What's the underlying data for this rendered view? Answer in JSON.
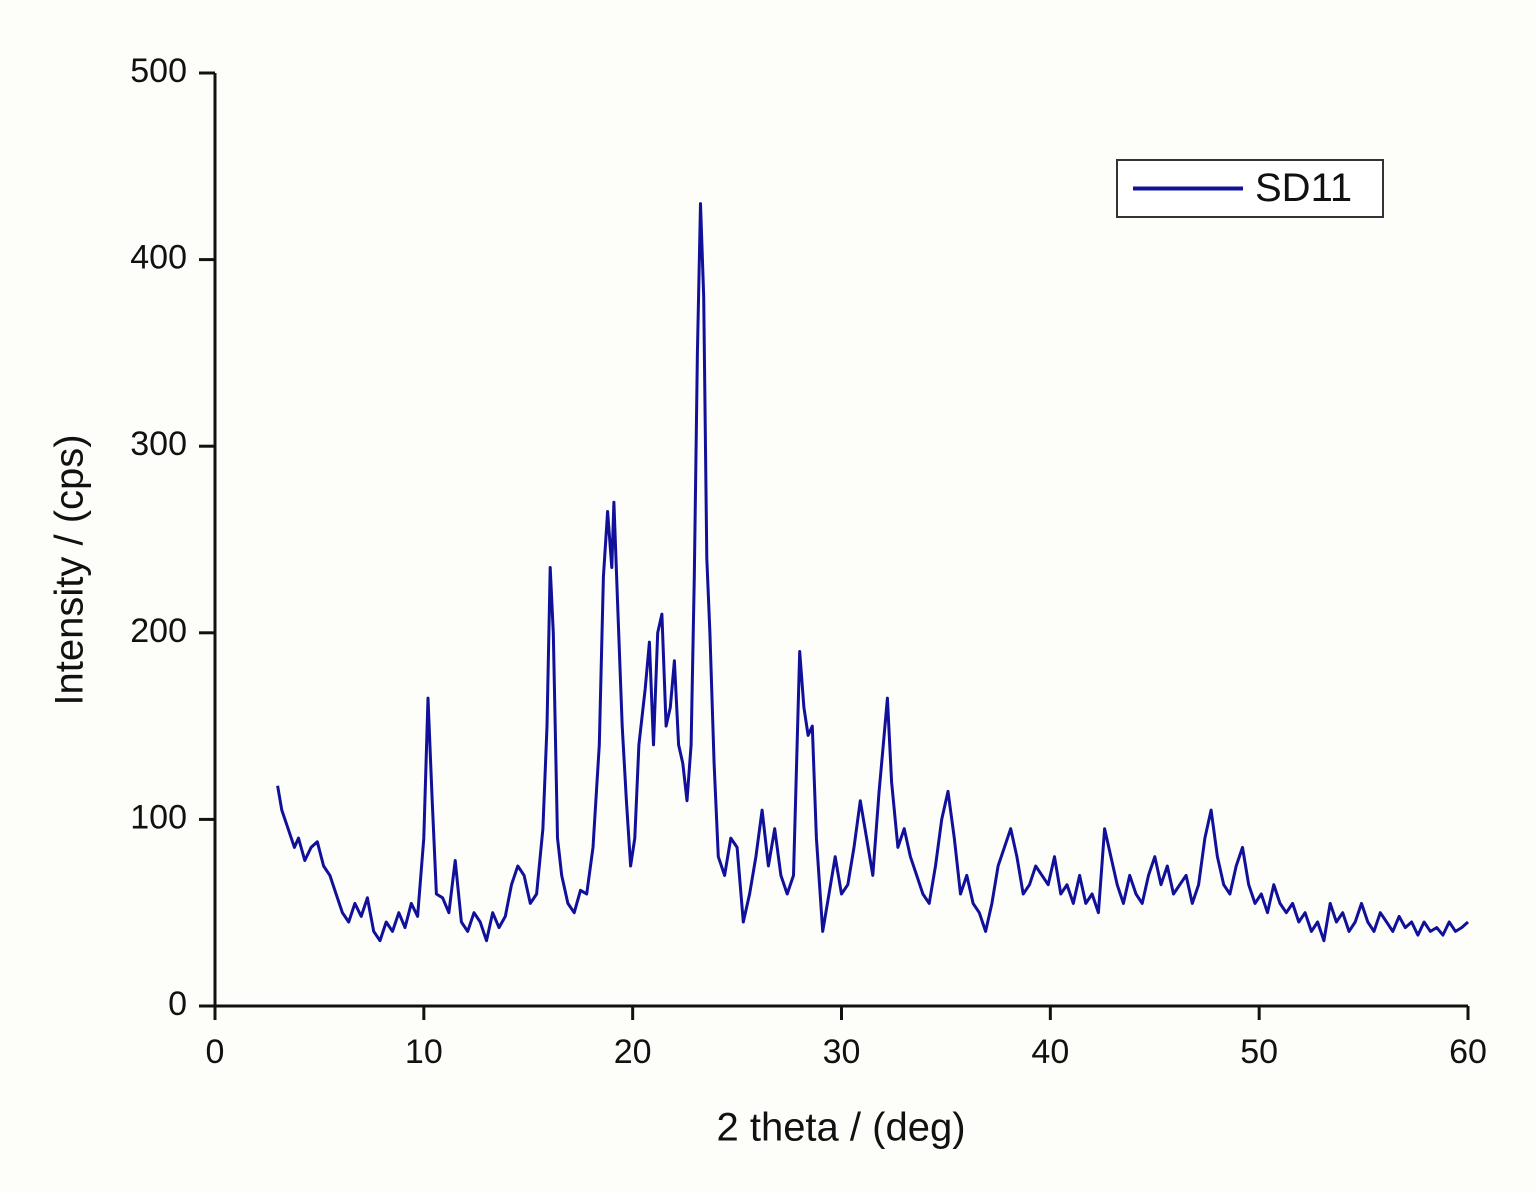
{
  "chart_data": {
    "type": "line",
    "xlabel": "2 theta / (deg)",
    "ylabel": "Intensity / (cps)",
    "xlim": [
      0,
      60
    ],
    "xticks": [
      0,
      10,
      20,
      30,
      40,
      50,
      60
    ],
    "ylim": [
      0,
      500
    ],
    "yticks": [
      0,
      100,
      200,
      300,
      400,
      500
    ],
    "legend": "upper right",
    "x": [
      3.0,
      3.2,
      3.5,
      3.8,
      4.0,
      4.3,
      4.6,
      4.9,
      5.2,
      5.5,
      5.8,
      6.1,
      6.4,
      6.7,
      7.0,
      7.3,
      7.6,
      7.9,
      8.2,
      8.5,
      8.8,
      9.1,
      9.4,
      9.7,
      10.0,
      10.2,
      10.4,
      10.6,
      10.9,
      11.2,
      11.5,
      11.8,
      12.1,
      12.4,
      12.7,
      13.0,
      13.3,
      13.6,
      13.9,
      14.2,
      14.5,
      14.8,
      15.1,
      15.4,
      15.7,
      15.9,
      16.05,
      16.2,
      16.4,
      16.6,
      16.9,
      17.2,
      17.5,
      17.8,
      18.1,
      18.4,
      18.6,
      18.8,
      19.0,
      19.1,
      19.3,
      19.5,
      19.7,
      19.9,
      20.1,
      20.3,
      20.6,
      20.8,
      21.0,
      21.2,
      21.4,
      21.6,
      21.8,
      22.0,
      22.2,
      22.4,
      22.6,
      22.8,
      22.95,
      23.1,
      23.25,
      23.4,
      23.55,
      23.7,
      23.9,
      24.1,
      24.4,
      24.7,
      25.0,
      25.3,
      25.6,
      25.9,
      26.2,
      26.5,
      26.8,
      27.1,
      27.4,
      27.7,
      28.0,
      28.2,
      28.4,
      28.6,
      28.8,
      29.1,
      29.4,
      29.7,
      30.0,
      30.3,
      30.6,
      30.9,
      31.2,
      31.5,
      31.8,
      32.0,
      32.2,
      32.4,
      32.7,
      33.0,
      33.3,
      33.6,
      33.9,
      34.2,
      34.5,
      34.8,
      35.1,
      35.4,
      35.7,
      36.0,
      36.3,
      36.6,
      36.9,
      37.2,
      37.5,
      37.8,
      38.1,
      38.4,
      38.7,
      39.0,
      39.3,
      39.6,
      39.9,
      40.2,
      40.5,
      40.8,
      41.1,
      41.4,
      41.7,
      42.0,
      42.3,
      42.6,
      42.9,
      43.2,
      43.5,
      43.8,
      44.1,
      44.4,
      44.7,
      45.0,
      45.3,
      45.6,
      45.9,
      46.2,
      46.5,
      46.8,
      47.1,
      47.4,
      47.7,
      48.0,
      48.3,
      48.6,
      48.9,
      49.2,
      49.5,
      49.8,
      50.1,
      50.4,
      50.7,
      51.0,
      51.3,
      51.6,
      51.9,
      52.2,
      52.5,
      52.8,
      53.1,
      53.4,
      53.7,
      54.0,
      54.3,
      54.6,
      54.9,
      55.2,
      55.5,
      55.8,
      56.1,
      56.4,
      56.7,
      57.0,
      57.3,
      57.6,
      57.9,
      58.2,
      58.5,
      58.8,
      59.1,
      59.4,
      59.7,
      60.0
    ],
    "series": [
      {
        "name": "SD11",
        "color": "#10109a",
        "values": [
          118,
          105,
          95,
          85,
          90,
          78,
          85,
          88,
          75,
          70,
          60,
          50,
          45,
          55,
          48,
          58,
          40,
          35,
          45,
          40,
          50,
          42,
          55,
          48,
          90,
          165,
          110,
          60,
          58,
          50,
          78,
          45,
          40,
          50,
          45,
          35,
          50,
          42,
          48,
          65,
          75,
          70,
          55,
          60,
          95,
          150,
          235,
          200,
          90,
          70,
          55,
          50,
          62,
          60,
          85,
          140,
          230,
          265,
          235,
          270,
          210,
          150,
          110,
          75,
          90,
          140,
          170,
          195,
          140,
          200,
          210,
          150,
          160,
          185,
          140,
          130,
          110,
          140,
          230,
          350,
          430,
          380,
          240,
          200,
          130,
          80,
          70,
          90,
          85,
          45,
          60,
          80,
          105,
          75,
          95,
          70,
          60,
          70,
          190,
          160,
          145,
          150,
          90,
          40,
          60,
          80,
          60,
          65,
          85,
          110,
          90,
          70,
          115,
          140,
          165,
          120,
          85,
          95,
          80,
          70,
          60,
          55,
          75,
          100,
          115,
          90,
          60,
          70,
          55,
          50,
          40,
          55,
          75,
          85,
          95,
          80,
          60,
          65,
          75,
          70,
          65,
          80,
          60,
          65,
          55,
          70,
          55,
          60,
          50,
          95,
          80,
          65,
          55,
          70,
          60,
          55,
          70,
          80,
          65,
          75,
          60,
          65,
          70,
          55,
          65,
          90,
          105,
          80,
          65,
          60,
          75,
          85,
          65,
          55,
          60,
          50,
          65,
          55,
          50,
          55,
          45,
          50,
          40,
          45,
          35,
          55,
          45,
          50,
          40,
          45,
          55,
          45,
          40,
          50,
          45,
          40,
          48,
          42,
          45,
          38,
          45,
          40,
          42,
          38,
          45,
          40,
          42,
          45
        ]
      }
    ]
  }
}
